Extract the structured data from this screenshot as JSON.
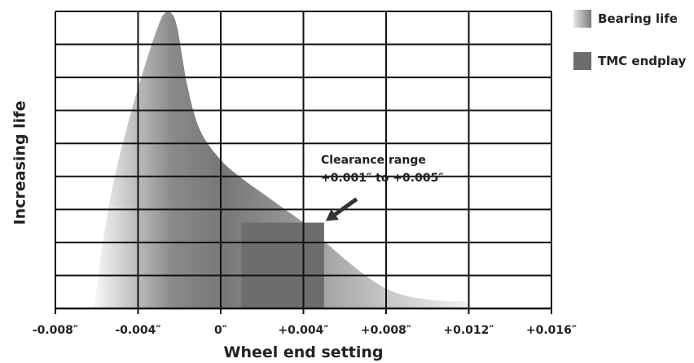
{
  "chart_data": {
    "type": "area",
    "xlabel": "Wheel end setting",
    "ylabel": "Increasing life",
    "xlim": [
      -0.008,
      0.016
    ],
    "ylim": [
      0,
      9
    ],
    "tick_labels": [
      "-0.008″",
      "-0.004″",
      "0″",
      "+0.004″",
      "+0.008″",
      "+0.012″",
      "+0.016″"
    ],
    "tick_values": [
      -0.008,
      -0.004,
      0,
      0.004,
      0.008,
      0.012,
      0.016
    ],
    "grid": true,
    "legend_position": "right",
    "series": [
      {
        "name": "Bearing life",
        "kind": "area",
        "x": [
          -0.0061,
          -0.0058,
          -0.0052,
          -0.0044,
          -0.0036,
          -0.003,
          -0.0027,
          -0.0024,
          -0.0021,
          -0.0016,
          -0.001,
          0.0,
          0.001,
          0.002,
          0.003,
          0.004,
          0.0048,
          0.006,
          0.007,
          0.008,
          0.009,
          0.0102,
          0.0111,
          0.0119
        ],
        "y": [
          0.0,
          1.6,
          3.8,
          5.8,
          7.5,
          8.6,
          8.95,
          8.95,
          8.5,
          6.7,
          5.4,
          4.5,
          3.95,
          3.5,
          3.05,
          2.6,
          2.15,
          1.5,
          1.0,
          0.6,
          0.38,
          0.26,
          0.22,
          0.22
        ]
      },
      {
        "name": "TMC endplay",
        "kind": "range",
        "x_range": [
          0.001,
          0.005
        ],
        "y_top": 2.6
      }
    ],
    "annotation": {
      "lines": [
        "Clearance range",
        "+0.001″ to +0.005″"
      ],
      "points_to": {
        "x": 0.005,
        "y": 2.6
      }
    },
    "colors": {
      "bearing_life_dark": "#7c7c7c",
      "bearing_life_light": "#e2e2e2",
      "tmc_endplay": "#6d6d6d",
      "grid": "#111111"
    }
  }
}
